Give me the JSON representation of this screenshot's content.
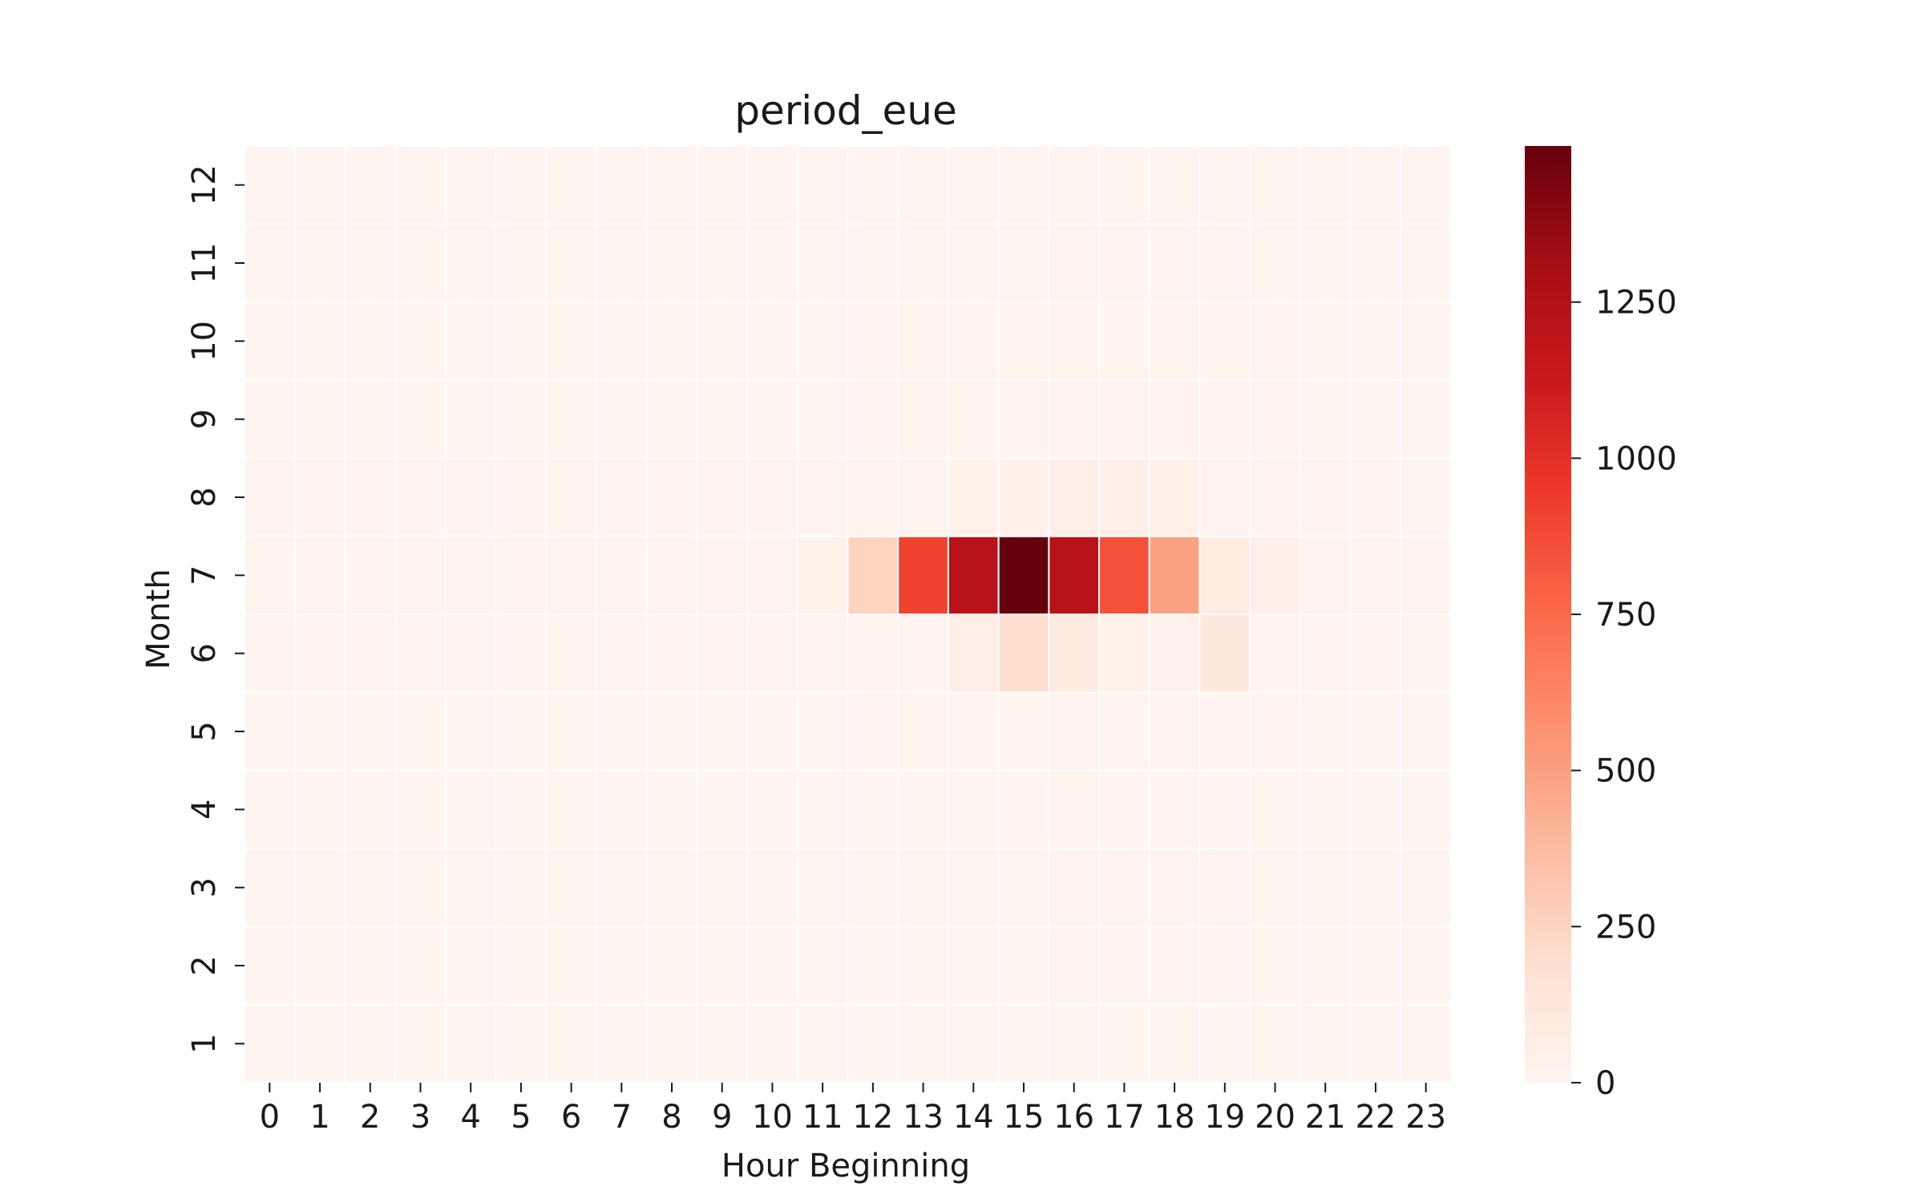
{
  "chart_data": {
    "type": "heatmap",
    "title": "period_eue",
    "xlabel": "Hour Beginning",
    "ylabel": "Month",
    "x_categories": [
      "0",
      "1",
      "2",
      "3",
      "4",
      "5",
      "6",
      "7",
      "8",
      "9",
      "10",
      "11",
      "12",
      "13",
      "14",
      "15",
      "16",
      "17",
      "18",
      "19",
      "20",
      "21",
      "22",
      "23"
    ],
    "y_categories": [
      "1",
      "2",
      "3",
      "4",
      "5",
      "6",
      "7",
      "8",
      "9",
      "10",
      "11",
      "12"
    ],
    "y_order": "bottom-to-top",
    "values": [
      [
        0,
        0,
        0,
        0,
        0,
        0,
        0,
        0,
        0,
        0,
        0,
        0,
        0,
        0,
        0,
        0,
        0,
        0,
        0,
        0,
        0,
        0,
        0,
        0
      ],
      [
        0,
        0,
        0,
        0,
        0,
        0,
        0,
        0,
        0,
        0,
        0,
        0,
        0,
        0,
        0,
        0,
        5,
        5,
        5,
        5,
        0,
        0,
        0,
        0
      ],
      [
        0,
        0,
        0,
        0,
        0,
        0,
        0,
        0,
        0,
        0,
        0,
        0,
        0,
        0,
        0,
        0,
        5,
        5,
        5,
        5,
        0,
        0,
        0,
        0
      ],
      [
        0,
        0,
        0,
        0,
        0,
        0,
        0,
        0,
        0,
        0,
        0,
        0,
        0,
        0,
        0,
        5,
        10,
        5,
        5,
        5,
        0,
        0,
        0,
        0
      ],
      [
        0,
        0,
        0,
        0,
        0,
        0,
        0,
        0,
        0,
        0,
        0,
        0,
        5,
        5,
        5,
        10,
        15,
        10,
        10,
        10,
        5,
        0,
        0,
        0
      ],
      [
        5,
        5,
        5,
        5,
        5,
        5,
        5,
        5,
        5,
        5,
        5,
        10,
        15,
        20,
        60,
        200,
        110,
        30,
        25,
        120,
        20,
        5,
        5,
        0
      ],
      [
        10,
        10,
        10,
        10,
        10,
        10,
        10,
        10,
        10,
        15,
        20,
        30,
        260,
        910,
        1220,
        1500,
        1220,
        850,
        500,
        90,
        60,
        20,
        10,
        5
      ],
      [
        5,
        5,
        5,
        5,
        5,
        5,
        5,
        5,
        5,
        5,
        5,
        10,
        15,
        20,
        30,
        40,
        60,
        50,
        40,
        20,
        10,
        5,
        5,
        0
      ],
      [
        0,
        0,
        0,
        0,
        0,
        0,
        0,
        0,
        0,
        0,
        0,
        0,
        5,
        5,
        10,
        15,
        20,
        20,
        15,
        10,
        5,
        0,
        0,
        0
      ],
      [
        0,
        0,
        0,
        0,
        0,
        0,
        0,
        0,
        0,
        0,
        0,
        0,
        5,
        5,
        5,
        10,
        10,
        10,
        10,
        10,
        5,
        0,
        0,
        0
      ],
      [
        0,
        0,
        0,
        0,
        0,
        0,
        0,
        0,
        0,
        0,
        0,
        0,
        0,
        0,
        0,
        0,
        5,
        5,
        5,
        5,
        0,
        0,
        0,
        0
      ],
      [
        0,
        0,
        0,
        0,
        0,
        0,
        0,
        0,
        0,
        0,
        0,
        0,
        0,
        0,
        0,
        0,
        0,
        0,
        0,
        0,
        0,
        0,
        0,
        0
      ]
    ],
    "colorbar": {
      "min": 0,
      "max": 1500,
      "ticks": [
        0,
        250,
        500,
        750,
        1000,
        1250
      ],
      "colormap": "Reds",
      "colors": [
        "#fff5f0",
        "#fee0d2",
        "#fcbba1",
        "#fc9272",
        "#fb6a4a",
        "#ef3b2c",
        "#cb181d",
        "#a50f15",
        "#67000d"
      ]
    },
    "grid": false,
    "cell_separator_color": "#ffffff"
  }
}
